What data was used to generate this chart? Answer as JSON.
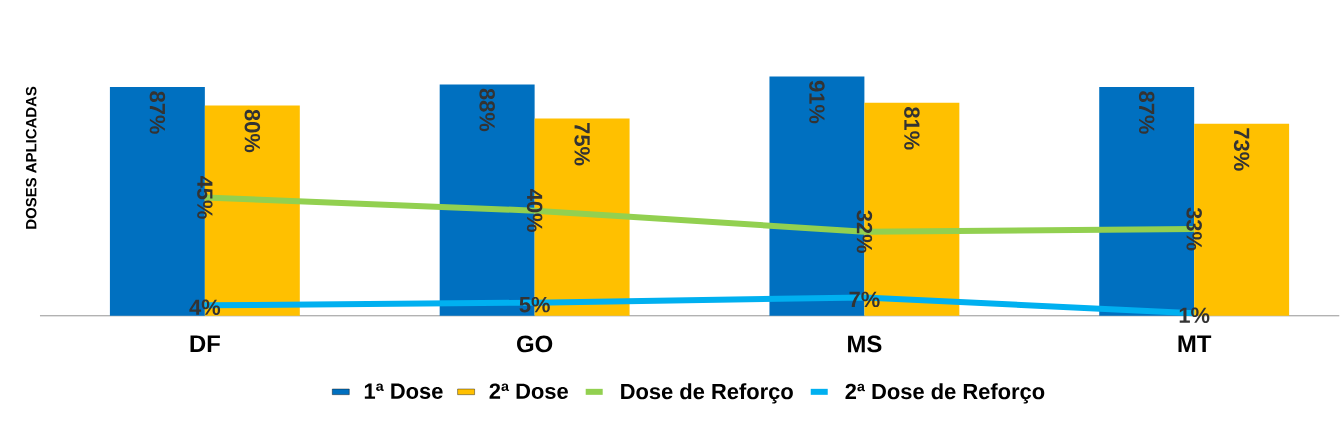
{
  "chart_data": {
    "type": "bar",
    "ylabel": "DOSES APLICADAS",
    "categories": [
      "DF",
      "GO",
      "MS",
      "MT"
    ],
    "series": [
      {
        "name": "1ª Dose",
        "color": "#0070c0",
        "values": [
          87,
          88,
          91,
          87
        ],
        "value_labels": [
          "87%",
          "88%",
          "91%",
          "87%"
        ]
      },
      {
        "name": "2ª Dose",
        "color": "#ffc000",
        "values": [
          80,
          75,
          81,
          73
        ],
        "value_labels": [
          "80%",
          "75%",
          "81%",
          "73%"
        ]
      },
      {
        "name": "Dose de Reforço",
        "type": "line",
        "color": "#92d050",
        "values": [
          45,
          40,
          32,
          33
        ],
        "value_labels": [
          "45%",
          "40%",
          "32%",
          "33%"
        ]
      },
      {
        "name": "2ª Dose de Reforço",
        "type": "line",
        "color": "#00b0f0",
        "values": [
          4,
          5,
          7,
          1
        ],
        "value_labels": [
          "4%",
          "5%",
          "7%",
          "1%"
        ]
      }
    ],
    "legend": "bottom",
    "grid": false
  }
}
